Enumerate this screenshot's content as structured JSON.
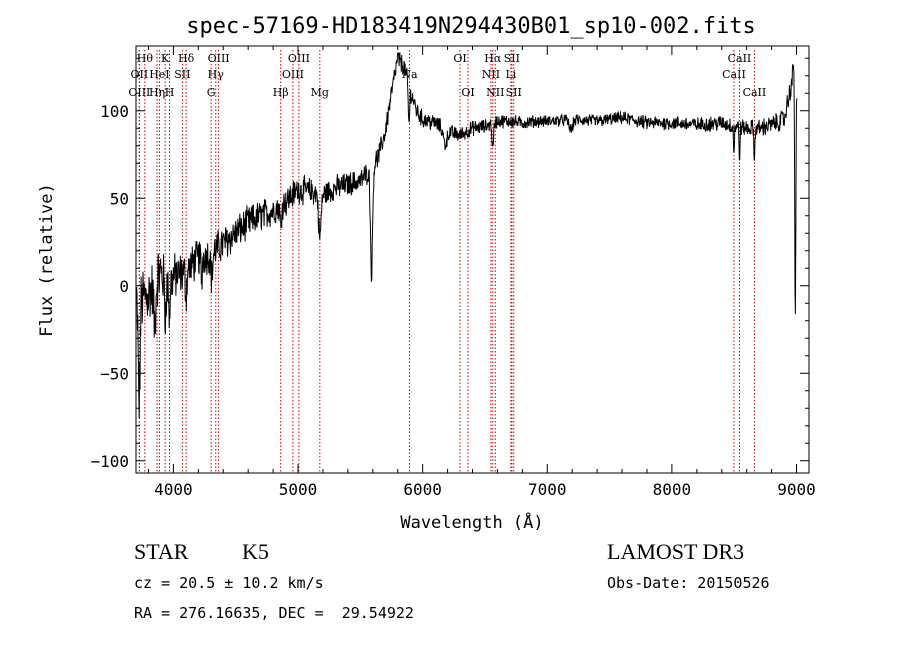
{
  "chart_data": {
    "type": "line",
    "title": "spec-57169-HD183419N294430B01_sp10-002.fits",
    "xlabel": "Wavelength (Å)",
    "ylabel": "Flux (relative)",
    "xlim": [
      3700,
      9100
    ],
    "ylim": [
      -107,
      137
    ],
    "x_ticks": [
      4000,
      5000,
      6000,
      7000,
      8000,
      9000
    ],
    "y_ticks": [
      -100,
      -50,
      0,
      50,
      100
    ],
    "x_tick_labels": [
      "4000",
      "5000",
      "6000",
      "7000",
      "8000",
      "9000"
    ],
    "y_tick_labels": [
      "−100",
      "−50",
      "0",
      "50",
      "100"
    ],
    "grid": false,
    "series": [
      {
        "name": "flux",
        "color": "#000000",
        "anchors": [
          [
            3700,
            -10
          ],
          [
            3750,
            -8
          ],
          [
            3800,
            -5
          ],
          [
            3850,
            2
          ],
          [
            3900,
            8
          ],
          [
            3950,
            -2
          ],
          [
            4000,
            5
          ],
          [
            4100,
            8
          ],
          [
            4200,
            16
          ],
          [
            4300,
            18
          ],
          [
            4400,
            24
          ],
          [
            4500,
            30
          ],
          [
            4600,
            36
          ],
          [
            4700,
            40
          ],
          [
            4800,
            43
          ],
          [
            4900,
            48
          ],
          [
            5000,
            55
          ],
          [
            5100,
            54
          ],
          [
            5200,
            52
          ],
          [
            5300,
            56
          ],
          [
            5400,
            58
          ],
          [
            5500,
            60
          ],
          [
            5600,
            68
          ],
          [
            5650,
            75
          ],
          [
            5700,
            88
          ],
          [
            5750,
            110
          ],
          [
            5800,
            130
          ],
          [
            5850,
            125
          ],
          [
            5900,
            112
          ],
          [
            5950,
            100
          ],
          [
            6000,
            95
          ],
          [
            6100,
            93
          ],
          [
            6200,
            88
          ],
          [
            6300,
            86
          ],
          [
            6400,
            90
          ],
          [
            6500,
            91
          ],
          [
            6600,
            94
          ],
          [
            6700,
            94
          ],
          [
            6800,
            93
          ],
          [
            6900,
            94
          ],
          [
            7000,
            94
          ],
          [
            7200,
            95
          ],
          [
            7400,
            94
          ],
          [
            7600,
            96
          ],
          [
            7800,
            93
          ],
          [
            8000,
            93
          ],
          [
            8200,
            92
          ],
          [
            8400,
            93
          ],
          [
            8500,
            91
          ],
          [
            8600,
            90
          ],
          [
            8700,
            90
          ],
          [
            8800,
            92
          ],
          [
            8900,
            95
          ],
          [
            8950,
            112
          ],
          [
            8980,
            125
          ],
          [
            9000,
            110
          ]
        ],
        "absorptions": [
          {
            "x": 3725,
            "depth": 60,
            "width": 10
          },
          {
            "x": 3850,
            "depth": 25,
            "width": 12
          },
          {
            "x": 3934,
            "depth": 22,
            "width": 6
          },
          {
            "x": 3969,
            "depth": 20,
            "width": 6
          },
          {
            "x": 4102,
            "depth": 14,
            "width": 8
          },
          {
            "x": 4227,
            "depth": 15,
            "width": 6
          },
          {
            "x": 4308,
            "depth": 14,
            "width": 10
          },
          {
            "x": 4861,
            "depth": 12,
            "width": 8
          },
          {
            "x": 5175,
            "depth": 25,
            "width": 14
          },
          {
            "x": 5590,
            "depth": 60,
            "width": 12
          },
          {
            "x": 5890,
            "depth": 22,
            "width": 8
          },
          {
            "x": 6180,
            "depth": 8,
            "width": 20
          },
          {
            "x": 6563,
            "depth": 16,
            "width": 8
          },
          {
            "x": 7190,
            "depth": 6,
            "width": 20
          },
          {
            "x": 8498,
            "depth": 15,
            "width": 5
          },
          {
            "x": 8542,
            "depth": 18,
            "width": 5
          },
          {
            "x": 8662,
            "depth": 20,
            "width": 5
          },
          {
            "x": 8990,
            "depth": 135,
            "width": 6
          }
        ],
        "noise": [
          [
            3700,
            18
          ],
          [
            3800,
            16
          ],
          [
            3900,
            14
          ],
          [
            4100,
            10
          ],
          [
            4400,
            9
          ],
          [
            4700,
            8
          ],
          [
            5000,
            7
          ],
          [
            5400,
            6
          ],
          [
            5800,
            5
          ],
          [
            6200,
            4
          ],
          [
            7000,
            3
          ],
          [
            8000,
            3.5
          ],
          [
            8800,
            4.5
          ],
          [
            9000,
            6
          ]
        ]
      }
    ],
    "line_markers": [
      {
        "x": 3771,
        "label": "Hθ",
        "row": 1
      },
      {
        "x": 3727,
        "label": "OII",
        "row": 2
      },
      {
        "x": 3727,
        "label": "OIII",
        "row": 3
      },
      {
        "x": 3869,
        "label": "Hη",
        "row": 3
      },
      {
        "x": 3934,
        "label": "K",
        "row": 1
      },
      {
        "x": 3888,
        "label": "HeI",
        "row": 2
      },
      {
        "x": 3969,
        "label": "H",
        "row": 3
      },
      {
        "x": 4072,
        "label": "SII",
        "row": 2
      },
      {
        "x": 4102,
        "label": "Hδ",
        "row": 1
      },
      {
        "x": 4303,
        "label": "G",
        "row": 3
      },
      {
        "x": 4340,
        "label": "Hγ",
        "row": 2
      },
      {
        "x": 4363,
        "label": "OIII",
        "row": 1
      },
      {
        "x": 4861,
        "label": "Hβ",
        "row": 3
      },
      {
        "x": 4959,
        "label": "OIII",
        "row": 2
      },
      {
        "x": 5007,
        "label": "OIII",
        "row": 1
      },
      {
        "x": 5175,
        "label": "Mg",
        "row": 3
      },
      {
        "x": 5894,
        "label": "Na",
        "row": 2
      },
      {
        "x": 6300,
        "label": "OI",
        "row": 1
      },
      {
        "x": 6364,
        "label": "OI",
        "row": 3
      },
      {
        "x": 6548,
        "label": "NII",
        "row": 2
      },
      {
        "x": 6563,
        "label": "Hα",
        "row": 1
      },
      {
        "x": 6583,
        "label": "NII",
        "row": 3
      },
      {
        "x": 6708,
        "label": "Li",
        "row": 2
      },
      {
        "x": 6716,
        "label": "SII",
        "row": 1
      },
      {
        "x": 6731,
        "label": "SII",
        "row": 3
      },
      {
        "x": 8498,
        "label": "CaII",
        "row": 2
      },
      {
        "x": 8542,
        "label": "CaII",
        "row": 1
      },
      {
        "x": 8662,
        "label": "CaII",
        "row": 3
      }
    ],
    "marker_color": "#cc0000"
  },
  "info": {
    "object_type": "STAR",
    "subclass": "K5",
    "survey": "LAMOST DR3",
    "redshift": "cz = 20.5 ± 10.2 km/s",
    "obs_date": "Obs-Date: 20150526",
    "coords": "RA = 276.16635, DEC =  29.54922"
  }
}
